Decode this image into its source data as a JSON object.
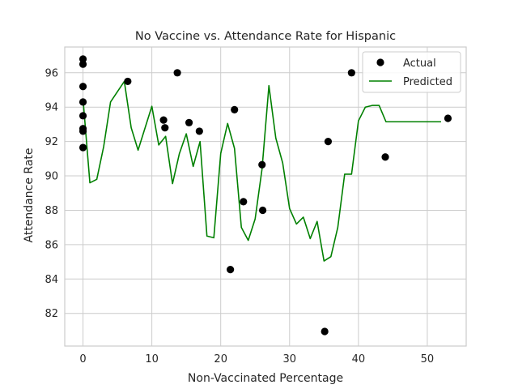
{
  "chart_data": {
    "type": "scatter",
    "title": "No Vaccine vs. Attendance Rate for Hispanic",
    "xlabel": "Non-Vaccinated Percentage",
    "ylabel": "Attendance Rate",
    "xlim": [
      -2.65,
      55.65
    ],
    "ylim": [
      80.1,
      97.5
    ],
    "xticks": [
      0,
      10,
      20,
      30,
      40,
      50
    ],
    "yticks": [
      82,
      84,
      86,
      88,
      90,
      92,
      94,
      96
    ],
    "grid": true,
    "legend_position": "top-right",
    "series": [
      {
        "name": "Actual",
        "kind": "scatter",
        "color": "#000000",
        "points": [
          [
            0,
            96.8
          ],
          [
            0,
            96.5
          ],
          [
            0,
            95.2
          ],
          [
            0,
            94.3
          ],
          [
            0,
            93.5
          ],
          [
            0,
            92.75
          ],
          [
            0,
            92.6
          ],
          [
            0,
            91.65
          ],
          [
            6.5,
            95.5
          ],
          [
            11.7,
            93.25
          ],
          [
            11.9,
            92.8
          ],
          [
            13.7,
            96.0
          ],
          [
            15.4,
            93.1
          ],
          [
            16.9,
            92.6
          ],
          [
            21.4,
            84.55
          ],
          [
            22.0,
            93.85
          ],
          [
            23.3,
            88.5
          ],
          [
            26.0,
            90.65
          ],
          [
            26.1,
            88.0
          ],
          [
            35.1,
            80.95
          ],
          [
            35.6,
            92.0
          ],
          [
            39.0,
            96.0
          ],
          [
            43.9,
            91.1
          ],
          [
            53.0,
            93.35
          ]
        ]
      },
      {
        "name": "Predicted",
        "kind": "line",
        "color": "#008000",
        "points": [
          [
            0,
            94.5
          ],
          [
            1,
            89.6
          ],
          [
            2,
            89.8
          ],
          [
            3,
            91.7
          ],
          [
            4,
            94.3
          ],
          [
            6,
            95.5
          ],
          [
            7,
            92.8
          ],
          [
            8,
            91.5
          ],
          [
            10,
            94.05
          ],
          [
            11,
            91.8
          ],
          [
            12,
            92.3
          ],
          [
            13,
            89.55
          ],
          [
            14,
            91.3
          ],
          [
            15,
            92.45
          ],
          [
            16,
            90.55
          ],
          [
            17,
            92.0
          ],
          [
            18,
            86.5
          ],
          [
            19,
            86.4
          ],
          [
            20,
            91.3
          ],
          [
            21,
            93.05
          ],
          [
            22,
            91.6
          ],
          [
            23,
            87.0
          ],
          [
            24,
            86.25
          ],
          [
            25,
            87.5
          ],
          [
            26,
            90.4
          ],
          [
            27,
            95.25
          ],
          [
            28,
            92.2
          ],
          [
            29,
            90.75
          ],
          [
            30,
            88.1
          ],
          [
            31,
            87.2
          ],
          [
            32,
            87.6
          ],
          [
            33,
            86.35
          ],
          [
            34,
            87.35
          ],
          [
            35,
            85.05
          ],
          [
            36,
            85.3
          ],
          [
            37,
            87.0
          ],
          [
            38,
            90.1
          ],
          [
            39,
            90.1
          ],
          [
            40,
            93.2
          ],
          [
            41,
            94.0
          ],
          [
            42,
            94.1
          ],
          [
            43,
            94.1
          ],
          [
            44,
            93.15
          ],
          [
            52,
            93.15
          ]
        ]
      }
    ]
  }
}
